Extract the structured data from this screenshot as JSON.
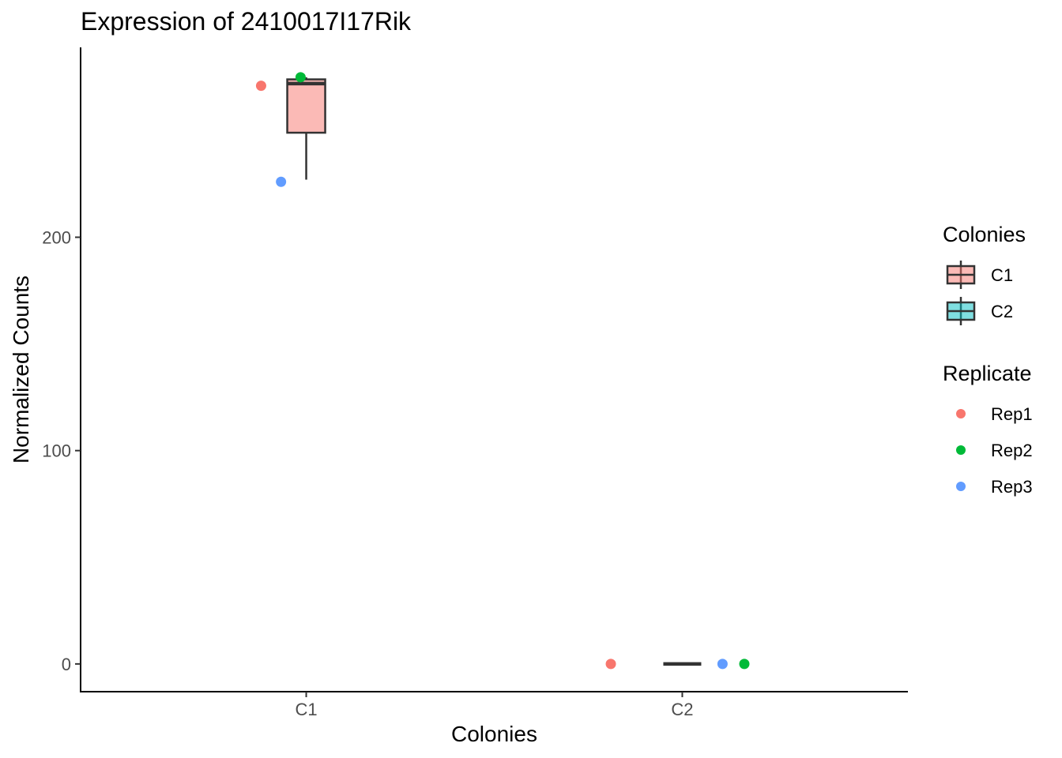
{
  "chart_data": {
    "type": "box",
    "title": "Expression of 2410017I17Rik",
    "xlabel": "Colonies",
    "ylabel": "Normalized Counts",
    "categories": [
      "C1",
      "C2"
    ],
    "yticks": [
      0,
      100,
      200
    ],
    "ylim": [
      -13,
      289
    ],
    "grid": false,
    "legend_position": "right",
    "boxes": [
      {
        "category": "C1",
        "fill": "#F8766D",
        "min": 227,
        "q1": 249,
        "median": 272,
        "q3": 274,
        "max": 275
      },
      {
        "category": "C2",
        "fill": "#00BFC4",
        "min": 0,
        "q1": 0,
        "median": 0,
        "q3": 0,
        "max": 0
      }
    ],
    "points": [
      {
        "category": "C1",
        "replicate": "Rep1",
        "value": 271,
        "jitter": -0.12
      },
      {
        "category": "C1",
        "replicate": "Rep2",
        "value": 275,
        "jitter": -0.015
      },
      {
        "category": "C1",
        "replicate": "Rep3",
        "value": 226,
        "jitter": -0.067
      },
      {
        "category": "C2",
        "replicate": "Rep1",
        "value": 0,
        "jitter": -0.19
      },
      {
        "category": "C2",
        "replicate": "Rep2",
        "value": 0,
        "jitter": 0.165
      },
      {
        "category": "C2",
        "replicate": "Rep3",
        "value": 0,
        "jitter": 0.107
      }
    ],
    "legends": [
      {
        "title": "Colonies",
        "kind": "box",
        "items": [
          {
            "label": "C1",
            "color": "#F8766D"
          },
          {
            "label": "C2",
            "color": "#00BFC4"
          }
        ]
      },
      {
        "title": "Replicate",
        "kind": "point",
        "items": [
          {
            "label": "Rep1",
            "color": "#F8766D"
          },
          {
            "label": "Rep2",
            "color": "#00BA38"
          },
          {
            "label": "Rep3",
            "color": "#619CFF"
          }
        ]
      }
    ]
  }
}
